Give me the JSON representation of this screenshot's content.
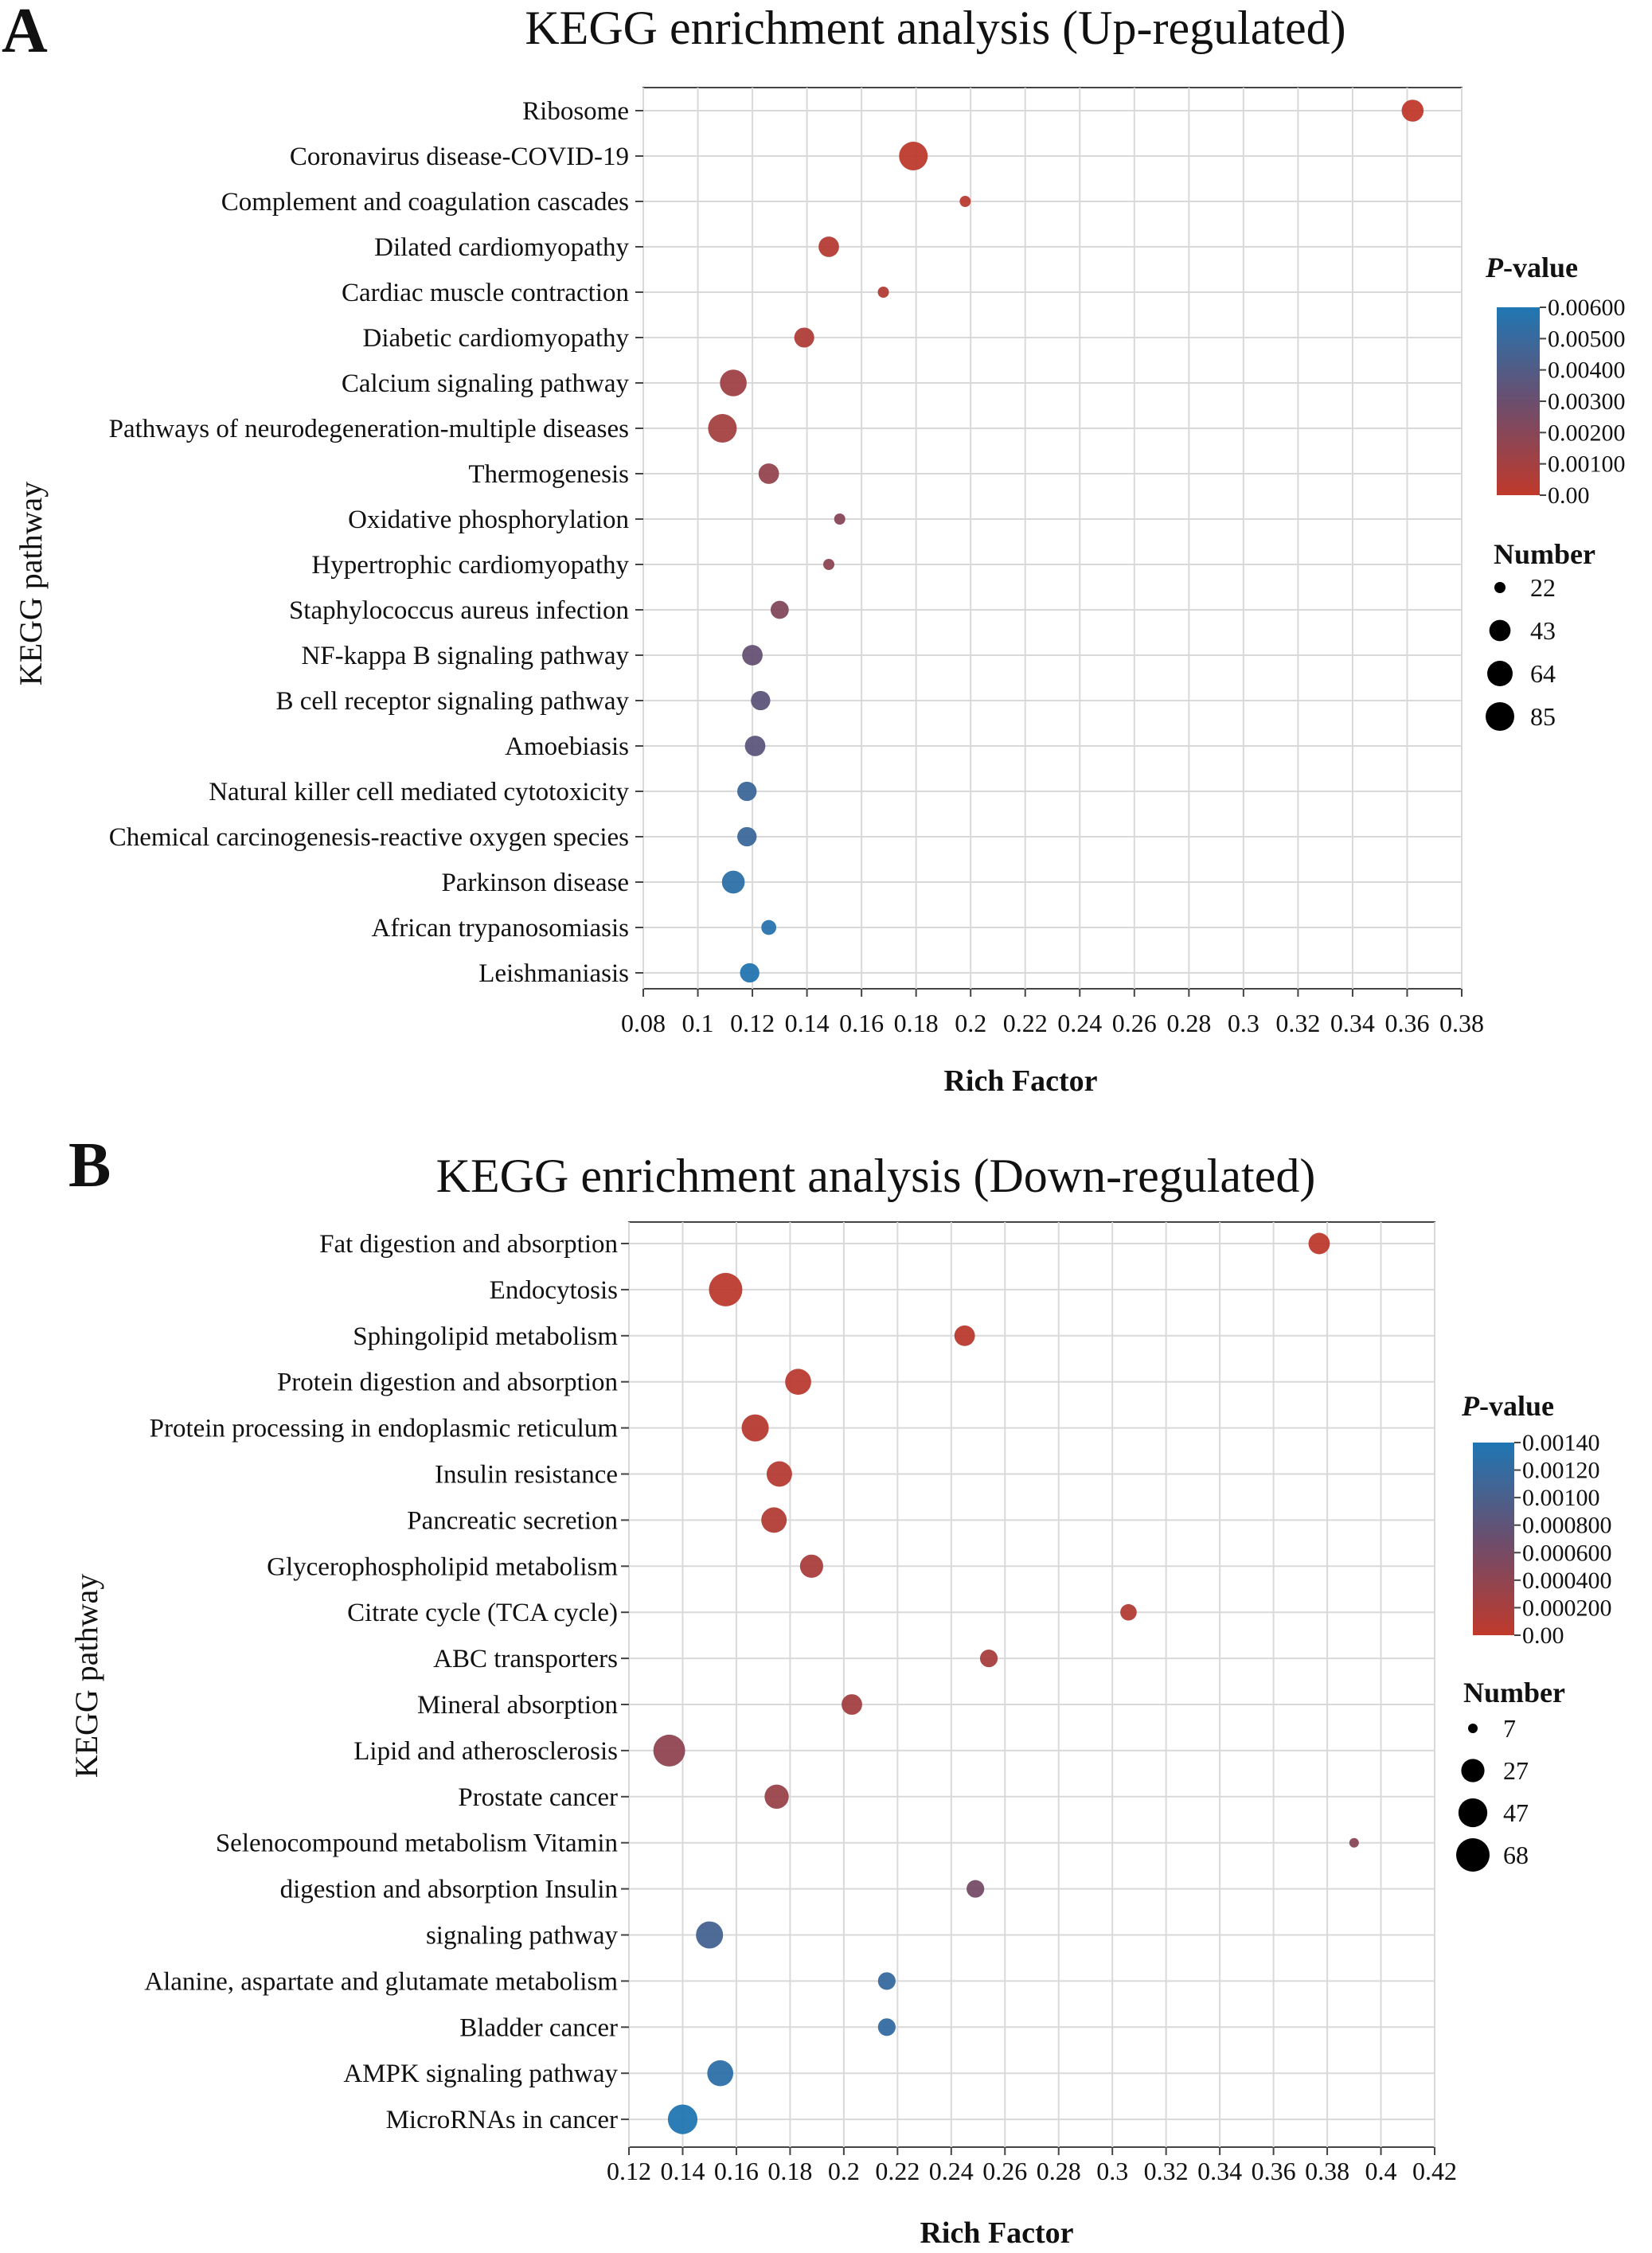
{
  "chart_data": [
    {
      "panel_label": "A",
      "type": "scatter",
      "title": "KEGG enrichment analysis (Up-regulated)",
      "xlabel": "Rich Factor",
      "ylabel": "KEGG pathway",
      "xlim": [
        0.08,
        0.38
      ],
      "x_ticks": [
        "0.08",
        "0.1",
        "0.12",
        "0.14",
        "0.16",
        "0.18",
        "0.2",
        "0.22",
        "0.24",
        "0.26",
        "0.28",
        "0.3",
        "0.32",
        "0.34",
        "0.36",
        "0.38"
      ],
      "grid": true,
      "legend_placement": "right",
      "color_legend": {
        "title_italic": "P",
        "title_rest": "-value",
        "ticks": [
          "0.00600",
          "0.00500",
          "0.00400",
          "0.00300",
          "0.00200",
          "0.00100",
          "0.00"
        ],
        "range": [
          0,
          0.006
        ],
        "low_color": "#c0392b",
        "mid_color": "#6b4e6e",
        "high_color": "#1f77b4"
      },
      "size_legend": {
        "title": "Number",
        "values": [
          22,
          43,
          64,
          85
        ]
      },
      "pathways": [
        {
          "name": "Ribosome",
          "x": 0.362,
          "pvalue": 0.0,
          "count": 46
        },
        {
          "name": "Coronavirus disease-COVID-19",
          "x": 0.179,
          "pvalue": 0.0001,
          "count": 85
        },
        {
          "name": "Complement and coagulation cascades",
          "x": 0.198,
          "pvalue": 0.0003,
          "count": 22
        },
        {
          "name": "Dilated cardiomyopathy",
          "x": 0.148,
          "pvalue": 0.0004,
          "count": 40
        },
        {
          "name": "Cardiac muscle contraction",
          "x": 0.168,
          "pvalue": 0.0005,
          "count": 22
        },
        {
          "name": "Diabetic cardiomyopathy",
          "x": 0.139,
          "pvalue": 0.0006,
          "count": 38
        },
        {
          "name": "Calcium signaling pathway",
          "x": 0.113,
          "pvalue": 0.0012,
          "count": 72
        },
        {
          "name": "Pathways of neurodegeneration-multiple diseases",
          "x": 0.109,
          "pvalue": 0.001,
          "count": 85
        },
        {
          "name": "Thermogenesis",
          "x": 0.126,
          "pvalue": 0.0016,
          "count": 40
        },
        {
          "name": "Oxidative phosphorylation",
          "x": 0.152,
          "pvalue": 0.002,
          "count": 22
        },
        {
          "name": "Hypertrophic cardiomyopathy",
          "x": 0.148,
          "pvalue": 0.0018,
          "count": 20
        },
        {
          "name": "Staphylococcus aureus infection",
          "x": 0.13,
          "pvalue": 0.0022,
          "count": 32
        },
        {
          "name": "NF-kappa B signaling pathway",
          "x": 0.12,
          "pvalue": 0.0032,
          "count": 40
        },
        {
          "name": "B cell receptor signaling pathway",
          "x": 0.123,
          "pvalue": 0.0035,
          "count": 36
        },
        {
          "name": "Amoebiasis",
          "x": 0.121,
          "pvalue": 0.0036,
          "count": 40
        },
        {
          "name": "Natural killer cell mediated cytotoxicity",
          "x": 0.118,
          "pvalue": 0.0048,
          "count": 36
        },
        {
          "name": "Chemical carcinogenesis-reactive oxygen species",
          "x": 0.118,
          "pvalue": 0.0049,
          "count": 36
        },
        {
          "name": "Parkinson disease",
          "x": 0.113,
          "pvalue": 0.0055,
          "count": 50
        },
        {
          "name": "African trypanosomiasis",
          "x": 0.126,
          "pvalue": 0.0057,
          "count": 25
        },
        {
          "name": "Leishmaniasis",
          "x": 0.119,
          "pvalue": 0.0058,
          "count": 36
        }
      ]
    },
    {
      "panel_label": "B",
      "type": "scatter",
      "title": "KEGG enrichment analysis (Down-regulated)",
      "xlabel": "Rich Factor",
      "ylabel": "KEGG pathway",
      "xlim": [
        0.12,
        0.42
      ],
      "x_ticks": [
        "0.12",
        "0.14",
        "0.16",
        "0.18",
        "0.2",
        "0.22",
        "0.24",
        "0.26",
        "0.28",
        "0.3",
        "0.32",
        "0.34",
        "0.36",
        "0.38",
        "0.4",
        "0.42"
      ],
      "grid": true,
      "legend_placement": "right",
      "color_legend": {
        "title_italic": "P",
        "title_rest": "-value",
        "ticks": [
          "0.00140",
          "0.00120",
          "0.00100",
          "0.000800",
          "0.000600",
          "0.000400",
          "0.000200",
          "0.00"
        ],
        "range": [
          0,
          0.0014
        ],
        "low_color": "#c0392b",
        "mid_color": "#6b4e6e",
        "high_color": "#1f77b4"
      },
      "size_legend": {
        "title": "Number",
        "values": [
          7,
          27,
          47,
          68
        ]
      },
      "pathways": [
        {
          "name": "Fat digestion and absorption",
          "x": 0.377,
          "pvalue": 2e-05,
          "count": 22
        },
        {
          "name": "Endocytosis",
          "x": 0.156,
          "pvalue": 3e-05,
          "count": 68
        },
        {
          "name": "Sphingolipid metabolism",
          "x": 0.245,
          "pvalue": 4e-05,
          "count": 20
        },
        {
          "name": "Protein digestion and absorption",
          "x": 0.183,
          "pvalue": 6e-05,
          "count": 36
        },
        {
          "name": "Protein processing in endoplasmic reticulum",
          "x": 0.167,
          "pvalue": 8e-05,
          "count": 40
        },
        {
          "name": "Insulin resistance",
          "x": 0.176,
          "pvalue": 0.0001,
          "count": 34
        },
        {
          "name": "Pancreatic secretion",
          "x": 0.174,
          "pvalue": 0.00012,
          "count": 34
        },
        {
          "name": "Glycerophospholipid metabolism",
          "x": 0.188,
          "pvalue": 0.00018,
          "count": 27
        },
        {
          "name": "Citrate cycle (TCA cycle)",
          "x": 0.306,
          "pvalue": 0.00012,
          "count": 12
        },
        {
          "name": "ABC transporters",
          "x": 0.254,
          "pvalue": 0.0002,
          "count": 14
        },
        {
          "name": "Mineral absorption",
          "x": 0.203,
          "pvalue": 0.00024,
          "count": 20
        },
        {
          "name": "Lipid and atherosclerosis",
          "x": 0.135,
          "pvalue": 0.0004,
          "count": 60
        },
        {
          "name": "Prostate cancer",
          "x": 0.175,
          "pvalue": 0.00032,
          "count": 30
        },
        {
          "name": "Selenocompound metabolism Vitamin",
          "x": 0.39,
          "pvalue": 0.00045,
          "count": 7
        },
        {
          "name": "digestion and absorption Insulin",
          "x": 0.249,
          "pvalue": 0.00062,
          "count": 14
        },
        {
          "name": "signaling pathway",
          "x": 0.15,
          "pvalue": 0.00105,
          "count": 40
        },
        {
          "name": "Alanine, aspartate and glutamate metabolism",
          "x": 0.216,
          "pvalue": 0.00118,
          "count": 14
        },
        {
          "name": "Bladder cancer",
          "x": 0.216,
          "pvalue": 0.00122,
          "count": 14
        },
        {
          "name": "AMPK signaling pathway",
          "x": 0.154,
          "pvalue": 0.00128,
          "count": 36
        },
        {
          "name": "MicroRNAs in cancer",
          "x": 0.14,
          "pvalue": 0.00138,
          "count": 50
        }
      ]
    }
  ]
}
